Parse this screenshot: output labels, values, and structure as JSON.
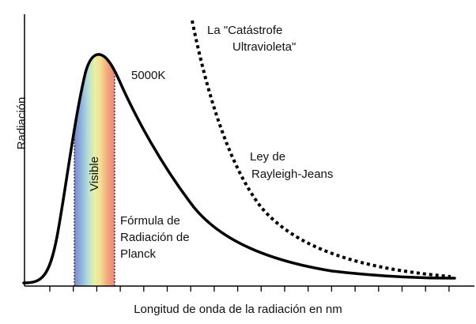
{
  "labels": {
    "catastrophe_line1": "La \"Catástrofe",
    "catastrophe_line2": "Ultravioleta\"",
    "temperature": "5000K",
    "rayleigh_line1": "Ley de",
    "rayleigh_line2": "Rayleigh-Jeans",
    "planck_line1": "Fórmula de",
    "planck_line2": "Radiación de",
    "planck_line3": "Planck",
    "visible": "Visible",
    "y_axis": "Radiación",
    "x_axis": "Longitud de onda de la radiación en nm"
  },
  "colors": {
    "curve": "#000000",
    "axis": "#000000",
    "visible_band": [
      "#7f86c8",
      "#8fb6e0",
      "#b9e2d6",
      "#e6f0a6",
      "#f5dd93",
      "#f2a77c",
      "#ee857f"
    ]
  },
  "chart_data": {
    "type": "line",
    "series": [
      {
        "name": "Fórmula de Radiación de Planck",
        "style": "solid"
      },
      {
        "name": "Ley de Rayleigh-Jeans",
        "style": "dotted"
      }
    ],
    "x_ticks": 18,
    "grid": false
  }
}
